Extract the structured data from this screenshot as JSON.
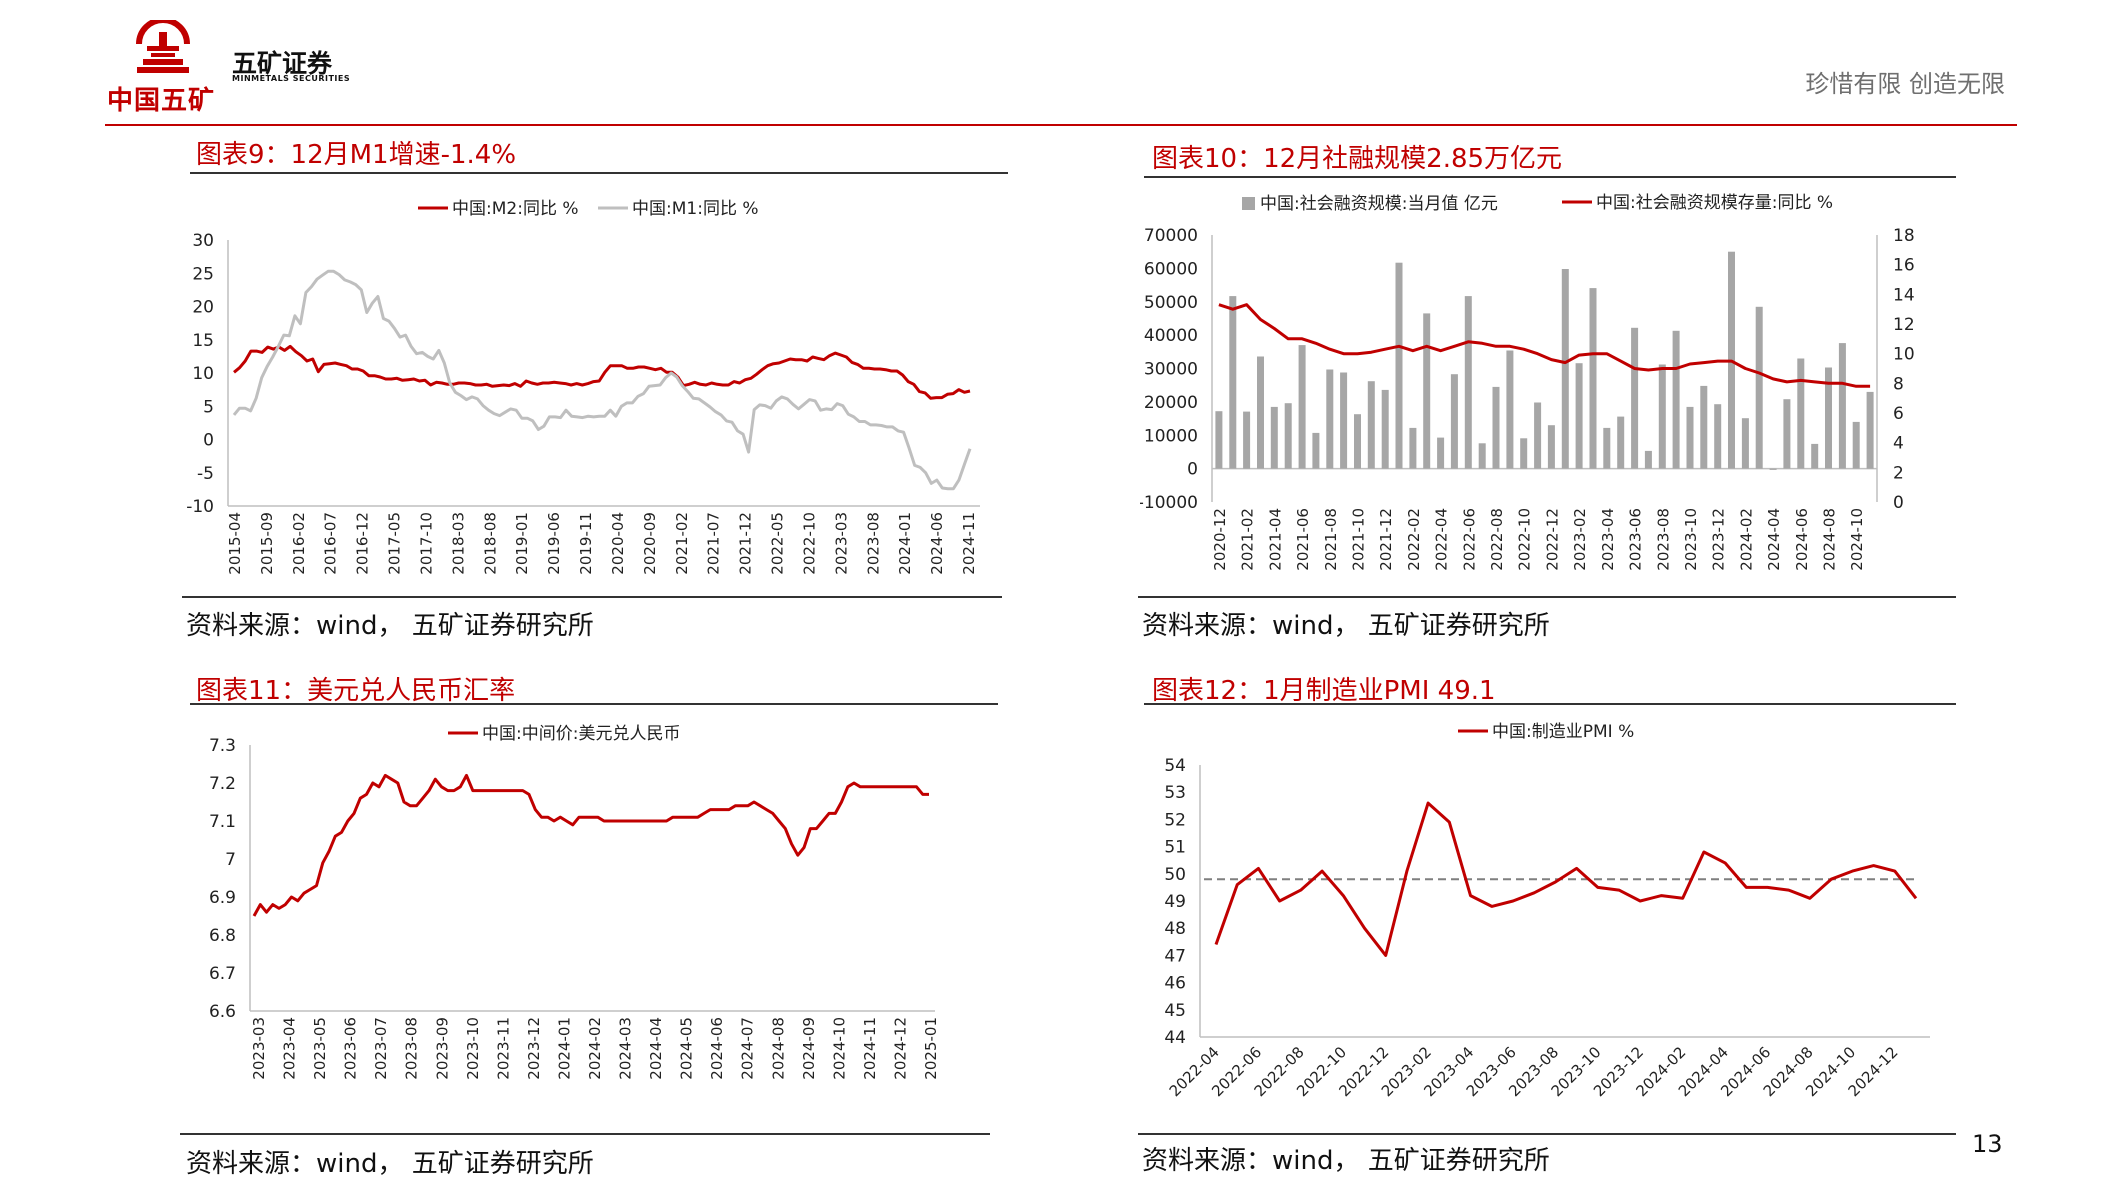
{
  "header": {
    "logo_text": "中国五矿",
    "company_name": "五矿证券",
    "company_en": "MINMETALS SECURITIES",
    "slogan": "珍惜有限  创造无限"
  },
  "page_number": "13",
  "colors": {
    "red": "#c00000",
    "gray": "#bfbfbf",
    "dash": "#7f7f7f"
  },
  "charts": [
    {
      "title": "图表9：12月M1增速-1.4%",
      "source": "资料来源：wind， 五矿证券研究所"
    },
    {
      "title": "图表10：12月社融规模2.85万亿元",
      "source": "资料来源：wind， 五矿证券研究所"
    },
    {
      "title": "图表11：美元兑人民币汇率",
      "source": "资料来源：wind， 五矿证券研究所"
    },
    {
      "title": "图表12：1月制造业PMI 49.1",
      "source": "资料来源：wind， 五矿证券研究所"
    }
  ],
  "chart_data": [
    {
      "type": "line",
      "title": "图表9：12月M1增速-1.4%",
      "ylim": [
        -10,
        30
      ],
      "yticks": [
        30,
        25,
        20,
        15,
        10,
        5,
        0,
        -5,
        -10
      ],
      "xticks": [
        "2015-04",
        "2015-09",
        "2016-02",
        "2016-07",
        "2016-12",
        "2017-05",
        "2017-10",
        "2018-03",
        "2018-08",
        "2019-01",
        "2019-06",
        "2019-11",
        "2020-04",
        "2020-09",
        "2021-02",
        "2021-07",
        "2021-12",
        "2022-05",
        "2022-10",
        "2023-03",
        "2023-08",
        "2024-01",
        "2024-06",
        "2024-11"
      ],
      "series": [
        {
          "name": "中国:M2:同比 %",
          "color": "#c00000",
          "values": [
            10.1,
            10.8,
            11.8,
            13.3,
            13.3,
            13.1,
            13.9,
            13.6,
            13.9,
            13.4,
            14.0,
            13.2,
            12.6,
            11.8,
            12.1,
            10.2,
            11.3,
            11.4,
            11.5,
            11.3,
            11.1,
            10.6,
            10.6,
            10.3,
            9.6,
            9.6,
            9.4,
            9.1,
            9.1,
            9.2,
            8.9,
            9.0,
            9.1,
            8.8,
            8.9,
            8.2,
            8.6,
            8.5,
            8.3,
            8.3,
            8.5,
            8.5,
            8.4,
            8.2,
            8.2,
            8.3,
            8.0,
            8.1,
            8.2,
            8.1,
            8.4,
            8.0,
            8.8,
            8.5,
            8.3,
            8.5,
            8.5,
            8.6,
            8.5,
            8.4,
            8.2,
            8.4,
            8.2,
            8.4,
            8.7,
            8.8,
            10.1,
            11.1,
            11.1,
            11.1,
            10.7,
            10.7,
            10.9,
            10.9,
            10.7,
            10.5,
            10.7,
            10.1,
            10.1,
            9.4,
            8.1,
            8.3,
            8.6,
            8.3,
            8.2,
            8.5,
            8.3,
            8.2,
            8.2,
            8.7,
            8.5,
            9.0,
            9.2,
            9.8,
            10.5,
            11.1,
            11.4,
            11.5,
            11.8,
            12.1,
            12.0,
            12.0,
            11.8,
            12.4,
            12.2,
            12.0,
            12.6,
            13.0,
            12.7,
            12.4,
            11.6,
            11.3,
            10.7,
            10.7,
            10.6,
            10.6,
            10.5,
            10.3,
            10.3,
            9.7,
            8.7,
            8.3,
            7.2,
            7.0,
            6.2,
            6.3,
            6.3,
            6.8,
            6.9,
            7.5,
            7.1,
            7.3
          ]
        },
        {
          "name": "中国:M1:同比 %",
          "color": "#bfbfbf",
          "values": [
            3.7,
            4.7,
            4.7,
            4.3,
            6.2,
            9.3,
            11.0,
            12.4,
            14.0,
            15.7,
            15.6,
            18.6,
            17.4,
            22.1,
            23.0,
            24.1,
            24.7,
            25.3,
            25.3,
            24.8,
            24.0,
            23.7,
            23.3,
            22.5,
            19.1,
            20.5,
            21.5,
            18.2,
            17.8,
            16.7,
            15.4,
            15.7,
            14.0,
            12.9,
            13.1,
            12.5,
            12.1,
            13.4,
            11.5,
            8.5,
            7.1,
            6.6,
            6.0,
            6.4,
            6.1,
            5.1,
            4.4,
            3.9,
            3.6,
            4.1,
            4.6,
            4.4,
            3.2,
            3.2,
            2.8,
            1.5,
            2.0,
            3.4,
            3.4,
            3.3,
            4.4,
            3.5,
            3.4,
            3.3,
            3.5,
            3.4,
            3.5,
            3.5,
            4.4,
            3.5,
            5.0,
            5.5,
            5.5,
            6.5,
            6.9,
            8.0,
            8.1,
            8.2,
            9.3,
            10.0,
            9.4,
            8.1,
            7.2,
            6.2,
            6.1,
            5.5,
            4.9,
            4.2,
            3.7,
            2.8,
            2.6,
            1.3,
            0.8,
            -1.9,
            4.5,
            5.2,
            5.1,
            4.7,
            5.8,
            6.4,
            6.1,
            5.3,
            4.6,
            5.3,
            6.0,
            5.8,
            4.4,
            4.6,
            4.5,
            5.4,
            5.1,
            3.8,
            3.4,
            2.7,
            2.7,
            2.2,
            2.2,
            2.1,
            1.9,
            1.9,
            1.3,
            1.1,
            -1.3,
            -3.9,
            -4.2,
            -5.0,
            -6.6,
            -6.1,
            -7.3,
            -7.4,
            -7.4,
            -6.1,
            -3.7,
            -1.4
          ]
        }
      ]
    },
    {
      "type": "bar",
      "title": "图表10：12月社融规模2.85万亿元",
      "ylim": [
        -10000,
        70000
      ],
      "ylim_right": [
        0,
        18
      ],
      "yticks": [
        70000,
        60000,
        50000,
        40000,
        30000,
        20000,
        10000,
        0,
        -10000
      ],
      "yticks_right": [
        18,
        16,
        14,
        12,
        10,
        8,
        6,
        4,
        2,
        0
      ],
      "xticks": [
        "2020-12",
        "2021-02",
        "2021-04",
        "2021-06",
        "2021-08",
        "2021-10",
        "2021-12",
        "2022-02",
        "2022-04",
        "2022-06",
        "2022-08",
        "2022-10",
        "2022-12",
        "2023-02",
        "2023-04",
        "2023-06",
        "2023-08",
        "2023-10",
        "2023-12",
        "2024-02",
        "2024-04",
        "2024-06",
        "2024-08",
        "2024-10"
      ],
      "series": [
        {
          "name": "中国:社会融资规模:当月值 亿元",
          "color": "#a6a6a6",
          "axis": "left",
          "values": [
            17200,
            51700,
            17100,
            33600,
            18500,
            19600,
            37000,
            10700,
            29700,
            28800,
            16300,
            26200,
            23600,
            61700,
            12200,
            46500,
            9300,
            28300,
            51700,
            7600,
            24500,
            35400,
            9100,
            19800,
            13000,
            59800,
            31600,
            54100,
            12200,
            15600,
            42200,
            5300,
            31200,
            41300,
            18500,
            24800,
            19300,
            65000,
            15100,
            48500,
            -400,
            20800,
            33000,
            7400,
            30300,
            37600,
            14000,
            23000
          ]
        },
        {
          "name": "中国:社会融资规模存量:同比 %",
          "color": "#c00000",
          "axis": "right",
          "values": [
            13.3,
            13.0,
            13.3,
            12.3,
            11.7,
            11.0,
            11.0,
            10.7,
            10.3,
            10.0,
            10.0,
            10.1,
            10.3,
            10.5,
            10.2,
            10.5,
            10.2,
            10.5,
            10.8,
            10.7,
            10.5,
            10.5,
            10.3,
            10.0,
            9.6,
            9.4,
            9.9,
            10.0,
            10.0,
            9.5,
            9.0,
            8.9,
            9.0,
            9.0,
            9.3,
            9.4,
            9.5,
            9.5,
            9.0,
            8.7,
            8.3,
            8.1,
            8.2,
            8.1,
            8.0,
            8.0,
            7.8,
            7.8
          ]
        }
      ]
    },
    {
      "type": "line",
      "title": "图表11：美元兑人民币汇率",
      "ylim": [
        6.6,
        7.3
      ],
      "yticks": [
        7.3,
        7.2,
        7.1,
        7,
        6.9,
        6.8,
        6.7,
        6.6
      ],
      "xticks": [
        "2023-03",
        "2023-04",
        "2023-05",
        "2023-06",
        "2023-07",
        "2023-08",
        "2023-09",
        "2023-10",
        "2023-11",
        "2023-12",
        "2024-01",
        "2024-02",
        "2024-03",
        "2024-04",
        "2024-05",
        "2024-06",
        "2024-07",
        "2024-08",
        "2024-09",
        "2024-10",
        "2024-11",
        "2024-12",
        "2025-01"
      ],
      "series": [
        {
          "name": "中国:中间价:美元兑人民币",
          "color": "#c00000",
          "values": [
            6.85,
            6.88,
            6.86,
            6.88,
            6.87,
            6.88,
            6.9,
            6.89,
            6.91,
            6.92,
            6.93,
            6.99,
            7.02,
            7.06,
            7.07,
            7.1,
            7.12,
            7.16,
            7.17,
            7.2,
            7.19,
            7.22,
            7.21,
            7.2,
            7.15,
            7.14,
            7.14,
            7.16,
            7.18,
            7.21,
            7.19,
            7.18,
            7.18,
            7.19,
            7.22,
            7.18,
            7.18,
            7.18,
            7.18,
            7.18,
            7.18,
            7.18,
            7.18,
            7.18,
            7.17,
            7.13,
            7.11,
            7.11,
            7.1,
            7.11,
            7.1,
            7.09,
            7.11,
            7.11,
            7.11,
            7.11,
            7.1,
            7.1,
            7.1,
            7.1,
            7.1,
            7.1,
            7.1,
            7.1,
            7.1,
            7.1,
            7.1,
            7.11,
            7.11,
            7.11,
            7.11,
            7.11,
            7.12,
            7.13,
            7.13,
            7.13,
            7.13,
            7.14,
            7.14,
            7.14,
            7.15,
            7.14,
            7.13,
            7.12,
            7.1,
            7.08,
            7.04,
            7.01,
            7.03,
            7.08,
            7.08,
            7.1,
            7.12,
            7.12,
            7.15,
            7.19,
            7.2,
            7.19,
            7.19,
            7.19,
            7.19,
            7.19,
            7.19,
            7.19,
            7.19,
            7.19,
            7.19,
            7.17,
            7.17
          ]
        }
      ]
    },
    {
      "type": "line",
      "title": "图表12：1月制造业PMI 49.1",
      "ylim": [
        44,
        54
      ],
      "yticks": [
        54,
        53,
        52,
        51,
        50,
        49,
        48,
        47,
        46,
        45,
        44
      ],
      "xticks": [
        "2022-04",
        "2022-06",
        "2022-08",
        "2022-10",
        "2022-12",
        "2023-02",
        "2023-04",
        "2023-06",
        "2023-08",
        "2023-10",
        "2023-12",
        "2024-02",
        "2024-04",
        "2024-06",
        "2024-08",
        "2024-10",
        "2024-12"
      ],
      "reference_line": 49.8,
      "series": [
        {
          "name": "中国:制造业PMI %",
          "color": "#c00000",
          "values": [
            47.4,
            49.6,
            50.2,
            49.0,
            49.4,
            50.1,
            49.2,
            48.0,
            47.0,
            50.1,
            52.6,
            51.9,
            49.2,
            48.8,
            49.0,
            49.3,
            49.7,
            50.2,
            49.5,
            49.4,
            49.0,
            49.2,
            49.1,
            50.8,
            50.4,
            49.5,
            49.5,
            49.4,
            49.1,
            49.8,
            50.1,
            50.3,
            50.1,
            49.1
          ]
        }
      ]
    }
  ]
}
